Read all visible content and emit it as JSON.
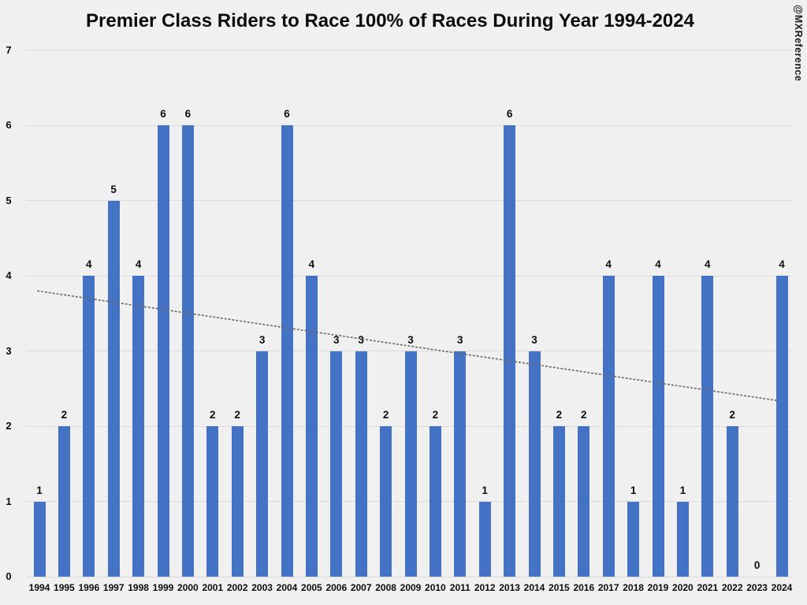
{
  "title": "Premier Class Riders to Race 100% of Races During Year 1994-2024",
  "watermark": "@MXReference",
  "chart_data": {
    "type": "bar",
    "title": "Premier Class Riders to Race 100% of Races During Year 1994-2024",
    "categories": [
      "1994",
      "1995",
      "1996",
      "1997",
      "1998",
      "1999",
      "2000",
      "2001",
      "2002",
      "2003",
      "2004",
      "2005",
      "2006",
      "2007",
      "2008",
      "2009",
      "2010",
      "2011",
      "2012",
      "2013",
      "2014",
      "2015",
      "2016",
      "2017",
      "2018",
      "2019",
      "2020",
      "2021",
      "2022",
      "2023",
      "2024"
    ],
    "values": [
      1,
      2,
      4,
      5,
      4,
      6,
      6,
      2,
      2,
      3,
      6,
      4,
      3,
      3,
      2,
      3,
      2,
      3,
      1,
      6,
      3,
      2,
      2,
      4,
      1,
      4,
      1,
      4,
      2,
      0,
      4
    ],
    "xlabel": "",
    "ylabel": "",
    "ylim": [
      0,
      7
    ],
    "yticks": [
      0,
      1,
      2,
      3,
      4,
      5,
      6,
      7
    ],
    "grid": "horizontal",
    "legend": "none",
    "data_labels": true,
    "bar_color": "#4472c4",
    "background_color": "#f0f0f0",
    "gridline_color": "#dadada",
    "trendline": {
      "style": "dotted",
      "color": "#6b6b6b",
      "start_value": 3.8,
      "end_value": 2.34,
      "start_category": "1994",
      "end_category": "2024"
    }
  }
}
